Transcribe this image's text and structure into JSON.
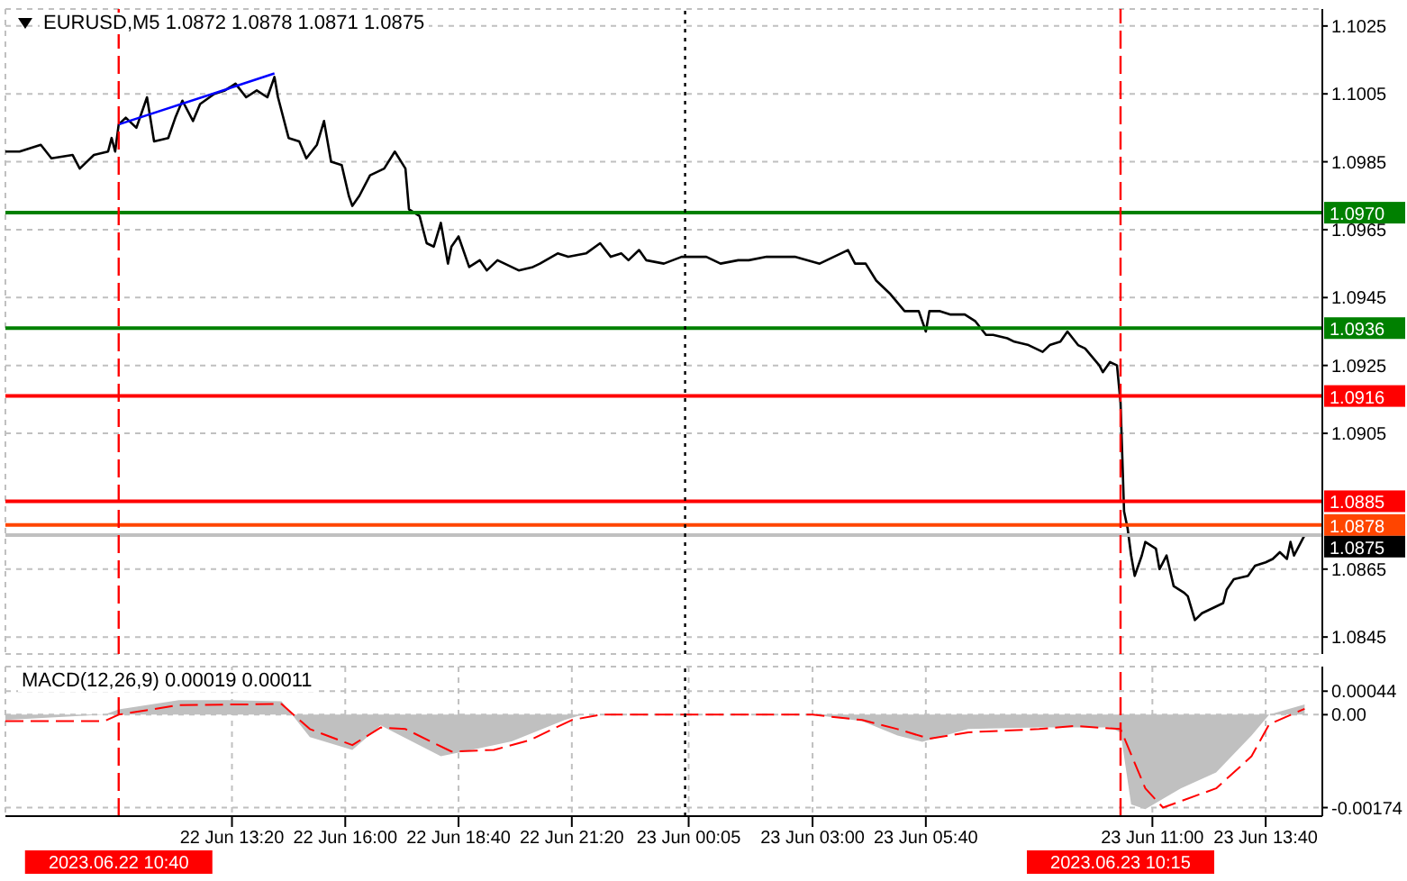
{
  "chart_data": [
    {
      "type": "line",
      "title": "EURUSD,M5 1.0872 1.0878 1.0871 1.0875",
      "tick_labels": "y",
      "grid": true,
      "xlim": [
        "2023-06-22T08:00",
        "2023-06-23T15:00"
      ],
      "xticks": [
        {
          "value": "2023-06-22T13:20",
          "label": null
        },
        {
          "value": "2023-06-22T16:00",
          "label": null
        },
        {
          "value": "2023-06-22T18:40",
          "label": null
        },
        {
          "value": "2023-06-22T21:20",
          "label": null
        },
        {
          "value": "2023-06-23T00:05",
          "label": null
        },
        {
          "value": "2023-06-23T03:00",
          "label": null
        },
        {
          "value": "2023-06-23T05:40",
          "label": null
        },
        {
          "value": "2023-06-23T11:00",
          "label": null
        },
        {
          "value": "2023-06-23T13:40",
          "label": null
        }
      ],
      "ylim": [
        1.084,
        1.103
      ],
      "yticks": [
        1.0845,
        1.0865,
        1.0905,
        1.0925,
        1.0945,
        1.0965,
        1.0985,
        1.1005,
        1.1025
      ],
      "series": [
        {
          "color": "#000000",
          "x": [
            "2023-06-22T08:00",
            "2023-06-22T08:20",
            "2023-06-22T08:50",
            "2023-06-22T09:05",
            "2023-06-22T09:35",
            "2023-06-22T09:45",
            "2023-06-22T10:05",
            "2023-06-22T10:25",
            "2023-06-22T10:30",
            "2023-06-22T10:35",
            "2023-06-22T10:40",
            "2023-06-22T10:50",
            "2023-06-22T11:05",
            "2023-06-22T11:20",
            "2023-06-22T11:30",
            "2023-06-22T11:50",
            "2023-06-22T12:00",
            "2023-06-22T12:10",
            "2023-06-22T12:25",
            "2023-06-22T12:35",
            "2023-06-22T12:55",
            "2023-06-22T13:10",
            "2023-06-22T13:25",
            "2023-06-22T13:40",
            "2023-06-22T13:55",
            "2023-06-22T14:10",
            "2023-06-22T14:20",
            "2023-06-22T14:25",
            "2023-06-22T14:40",
            "2023-06-22T14:55",
            "2023-06-22T15:05",
            "2023-06-22T15:20",
            "2023-06-22T15:30",
            "2023-06-22T15:40",
            "2023-06-22T15:55",
            "2023-06-22T16:05",
            "2023-06-22T16:10",
            "2023-06-22T16:20",
            "2023-06-22T16:35",
            "2023-06-22T16:45",
            "2023-06-22T16:55",
            "2023-06-22T17:10",
            "2023-06-22T17:25",
            "2023-06-22T17:30",
            "2023-06-22T17:45",
            "2023-06-22T17:55",
            "2023-06-22T18:05",
            "2023-06-22T18:15",
            "2023-06-22T18:25",
            "2023-06-22T18:30",
            "2023-06-22T18:40",
            "2023-06-22T18:55",
            "2023-06-22T19:10",
            "2023-06-22T19:20",
            "2023-06-22T19:35",
            "2023-06-22T19:45",
            "2023-06-22T20:05",
            "2023-06-22T20:25",
            "2023-06-22T20:35",
            "2023-06-22T21:00",
            "2023-06-22T21:15",
            "2023-06-22T21:40",
            "2023-06-22T22:00",
            "2023-06-22T22:15",
            "2023-06-22T22:30",
            "2023-06-22T22:40",
            "2023-06-22T22:55",
            "2023-06-22T23:05",
            "2023-06-22T23:30",
            "2023-06-22T23:55",
            "2023-06-23T00:15",
            "2023-06-23T00:30",
            "2023-06-23T00:50",
            "2023-06-23T01:15",
            "2023-06-23T01:30",
            "2023-06-23T01:55",
            "2023-06-23T02:20",
            "2023-06-23T02:35",
            "2023-06-23T03:10",
            "2023-06-23T03:50",
            "2023-06-23T04:00",
            "2023-06-23T04:15",
            "2023-06-23T04:30",
            "2023-06-23T04:50",
            "2023-06-23T05:10",
            "2023-06-23T05:30",
            "2023-06-23T05:40",
            "2023-06-23T05:45",
            "2023-06-23T06:00",
            "2023-06-23T06:15",
            "2023-06-23T06:35",
            "2023-06-23T06:50",
            "2023-06-23T07:05",
            "2023-06-23T07:15",
            "2023-06-23T07:35",
            "2023-06-23T07:45",
            "2023-06-23T08:05",
            "2023-06-23T08:15",
            "2023-06-23T08:25",
            "2023-06-23T08:35",
            "2023-06-23T08:50",
            "2023-06-23T09:00",
            "2023-06-23T09:15",
            "2023-06-23T09:25",
            "2023-06-23T09:45",
            "2023-06-23T09:50",
            "2023-06-23T10:00",
            "2023-06-23T10:10",
            "2023-06-23T10:15",
            "2023-06-23T10:20",
            "2023-06-23T10:25",
            "2023-06-23T10:30",
            "2023-06-23T10:35",
            "2023-06-23T10:45",
            "2023-06-23T10:50",
            "2023-06-23T11:05",
            "2023-06-23T11:10",
            "2023-06-23T11:20",
            "2023-06-23T11:30",
            "2023-06-23T11:45",
            "2023-06-23T11:50",
            "2023-06-23T12:00",
            "2023-06-23T12:10",
            "2023-06-23T12:20",
            "2023-06-23T12:40",
            "2023-06-23T12:45",
            "2023-06-23T12:55",
            "2023-06-23T13:15",
            "2023-06-23T13:25",
            "2023-06-23T13:40",
            "2023-06-23T13:50",
            "2023-06-23T14:00",
            "2023-06-23T14:10",
            "2023-06-23T14:15",
            "2023-06-23T14:20",
            "2023-06-23T14:30",
            "2023-06-23T14:35"
          ],
          "values": [
            1.0988,
            1.0988,
            1.099,
            1.0986,
            1.0987,
            1.0983,
            1.0987,
            1.0988,
            1.0992,
            1.0988,
            1.0996,
            1.0998,
            1.0995,
            1.1004,
            1.0991,
            1.0992,
            1.0998,
            1.1003,
            1.0997,
            1.1002,
            1.1005,
            1.1006,
            1.1008,
            1.1004,
            1.1006,
            1.1004,
            1.101,
            1.1004,
            1.0992,
            1.0991,
            1.0986,
            1.099,
            1.0997,
            1.0985,
            1.0984,
            1.0975,
            1.0972,
            1.0975,
            1.0981,
            1.0982,
            1.0983,
            1.0988,
            1.0983,
            1.0971,
            1.0969,
            1.0961,
            1.096,
            1.0967,
            1.0955,
            1.096,
            1.0963,
            1.0954,
            1.0956,
            1.0953,
            1.0956,
            1.0955,
            1.0953,
            1.0954,
            1.0955,
            1.0958,
            1.0957,
            1.0958,
            1.0961,
            1.0957,
            1.0958,
            1.0956,
            1.0959,
            1.0956,
            1.0955,
            1.0957,
            1.0957,
            1.0957,
            1.0955,
            1.0956,
            1.0956,
            1.0957,
            1.0957,
            1.0957,
            1.0955,
            1.0959,
            1.0955,
            1.0955,
            1.095,
            1.0946,
            1.0941,
            1.0941,
            1.0935,
            1.0941,
            1.0941,
            1.094,
            1.094,
            1.0938,
            1.0934,
            1.0934,
            1.0933,
            1.0932,
            1.0931,
            1.093,
            1.0929,
            1.0931,
            1.0932,
            1.0935,
            1.0931,
            1.093,
            1.0925,
            1.0923,
            1.0926,
            1.0925,
            1.0914,
            1.0882,
            1.0877,
            1.0869,
            1.0863,
            1.0869,
            1.0873,
            1.0871,
            1.0865,
            1.0869,
            1.086,
            1.0858,
            1.0857,
            1.085,
            1.0852,
            1.0853,
            1.0855,
            1.0859,
            1.0862,
            1.0863,
            1.0866,
            1.0867,
            1.0868,
            1.087,
            1.0868,
            1.0873,
            1.0869,
            1.0873,
            1.0875
          ]
        },
        {
          "color": "#0000ff",
          "x": [
            "2023-06-22T10:40",
            "2023-06-22T14:20"
          ],
          "values": [
            1.0996,
            1.1011
          ]
        }
      ],
      "ref_lines": [
        {
          "axis": "y",
          "value": 1.097,
          "label": "1.0970",
          "color": "#008000"
        },
        {
          "axis": "y",
          "value": 1.0936,
          "label": "1.0936",
          "color": "#008000"
        },
        {
          "axis": "y",
          "value": 1.0916,
          "label": "1.0916",
          "color": "#ff0000"
        },
        {
          "axis": "y",
          "value": 1.0885,
          "label": "1.0885",
          "color": "#ff0000"
        },
        {
          "axis": "y",
          "value": 1.0878,
          "label": "1.0878",
          "color": "#ff4500"
        },
        {
          "axis": "y",
          "value": 1.0875,
          "label": "1.0875",
          "color": "#c0c0c0"
        },
        {
          "axis": "x",
          "value": "2023-06-22T10:40",
          "color": "#ff0000",
          "line_style": "dashed"
        },
        {
          "axis": "x",
          "value": "2023-06-23T00:00",
          "color": "#000000",
          "line_style": "dotted"
        },
        {
          "axis": "x",
          "value": "2023-06-23T10:15",
          "color": "#ff0000",
          "line_style": "dashed"
        }
      ]
    },
    {
      "type": "area",
      "title": "MACD(12,26,9) 0.00019 0.00011",
      "grid": true,
      "xlim": [
        "2023-06-22T08:00",
        "2023-06-23T15:00"
      ],
      "xticks": [
        {
          "value": "2023-06-22T13:20",
          "label": "22 Jun 13:20"
        },
        {
          "value": "2023-06-22T16:00",
          "label": "22 Jun 16:00"
        },
        {
          "value": "2023-06-22T18:40",
          "label": "22 Jun 18:40"
        },
        {
          "value": "2023-06-22T21:20",
          "label": "22 Jun 21:20"
        },
        {
          "value": "2023-06-23T00:05",
          "label": "23 Jun 00:05"
        },
        {
          "value": "2023-06-23T03:00",
          "label": "23 Jun 03:00"
        },
        {
          "value": "2023-06-23T05:40",
          "label": "23 Jun 05:40"
        },
        {
          "value": "2023-06-23T11:00",
          "label": "23 Jun 11:00"
        },
        {
          "value": "2023-06-23T13:40",
          "label": "23 Jun 13:40"
        }
      ],
      "ylim": [
        -0.0019,
        0.0009
      ],
      "yticks": [
        {
          "value": -0.00174,
          "label": "-0.00174"
        },
        {
          "value": 0,
          "label": "0.00"
        },
        {
          "value": 0.00044,
          "label": "0.00044"
        }
      ],
      "series": [
        {
          "color": "#c0c0c0",
          "x": [
            "2023-06-22T08:00",
            "2023-06-22T10:20",
            "2023-06-22T10:40",
            "2023-06-22T12:05",
            "2023-06-22T13:15",
            "2023-06-22T14:30",
            "2023-06-22T15:10",
            "2023-06-22T16:10",
            "2023-06-22T16:50",
            "2023-06-22T18:15",
            "2023-06-22T19:55",
            "2023-06-22T21:10",
            "2023-06-22T21:35",
            "2023-06-22T23:40",
            "2023-06-23T00:10",
            "2023-06-23T03:00",
            "2023-06-23T04:10",
            "2023-06-23T05:00",
            "2023-06-23T05:35",
            "2023-06-23T06:40",
            "2023-06-23T08:20",
            "2023-06-23T10:00",
            "2023-06-23T10:15",
            "2023-06-23T10:30",
            "2023-06-23T10:50",
            "2023-06-23T11:40",
            "2023-06-23T12:30",
            "2023-06-23T13:20",
            "2023-06-23T13:45",
            "2023-06-23T14:35"
          ],
          "values": [
            -0.0001,
            0,
            0.0001,
            0.00027,
            0.00027,
            0.00025,
            -0.00042,
            -0.00066,
            -0.0002,
            -0.00078,
            -0.0005,
            -0.0001,
            0,
            0,
            0,
            0,
            -0.00012,
            -0.00039,
            -0.00051,
            -0.00027,
            -0.00024,
            -0.00024,
            -0.00033,
            -0.00168,
            -0.00177,
            -0.00138,
            -0.00108,
            -0.00039,
            0,
            0.00019
          ]
        },
        {
          "type": "line",
          "color": "#ff0000",
          "line_style": "dashed",
          "x": [
            "2023-06-22T08:00",
            "2023-06-22T10:20",
            "2023-06-22T10:40",
            "2023-06-22T12:05",
            "2023-06-22T14:30",
            "2023-06-22T15:10",
            "2023-06-22T16:10",
            "2023-06-22T16:50",
            "2023-06-22T17:25",
            "2023-06-22T18:30",
            "2023-06-22T19:30",
            "2023-06-22T20:20",
            "2023-06-22T21:20",
            "2023-06-22T22:00",
            "2023-06-22T23:40",
            "2023-06-23T00:10",
            "2023-06-23T03:00",
            "2023-06-23T04:10",
            "2023-06-23T05:00",
            "2023-06-23T05:45",
            "2023-06-23T06:40",
            "2023-06-23T08:20",
            "2023-06-23T09:10",
            "2023-06-23T10:15",
            "2023-06-23T10:50",
            "2023-06-23T11:15",
            "2023-06-23T11:40",
            "2023-06-23T12:30",
            "2023-06-23T13:20",
            "2023-06-23T13:45",
            "2023-06-23T14:35"
          ],
          "values": [
            -0.00012,
            -0.00012,
            0,
            0.00018,
            0.0002,
            -0.00027,
            -0.00057,
            -0.00024,
            -0.00027,
            -0.00069,
            -0.00066,
            -0.00048,
            -0.0001,
            0,
            0,
            0,
            0,
            -0.0001,
            -0.00027,
            -0.00045,
            -0.00033,
            -0.00027,
            -0.00021,
            -0.00027,
            -0.00138,
            -0.00174,
            -0.00162,
            -0.00138,
            -0.00078,
            -0.00018,
            0.00011
          ]
        }
      ],
      "ref_lines": [
        {
          "axis": "x",
          "value": "2023-06-22T10:40",
          "label": "2023.06.22 10:40",
          "color": "#ff0000",
          "line_style": "dashed"
        },
        {
          "axis": "x",
          "value": "2023-06-23T00:00",
          "color": "#000000",
          "line_style": "dotted"
        },
        {
          "axis": "x",
          "value": "2023-06-23T10:15",
          "label": "2023.06.23 10:15",
          "color": "#ff0000",
          "line_style": "dashed"
        }
      ]
    }
  ]
}
